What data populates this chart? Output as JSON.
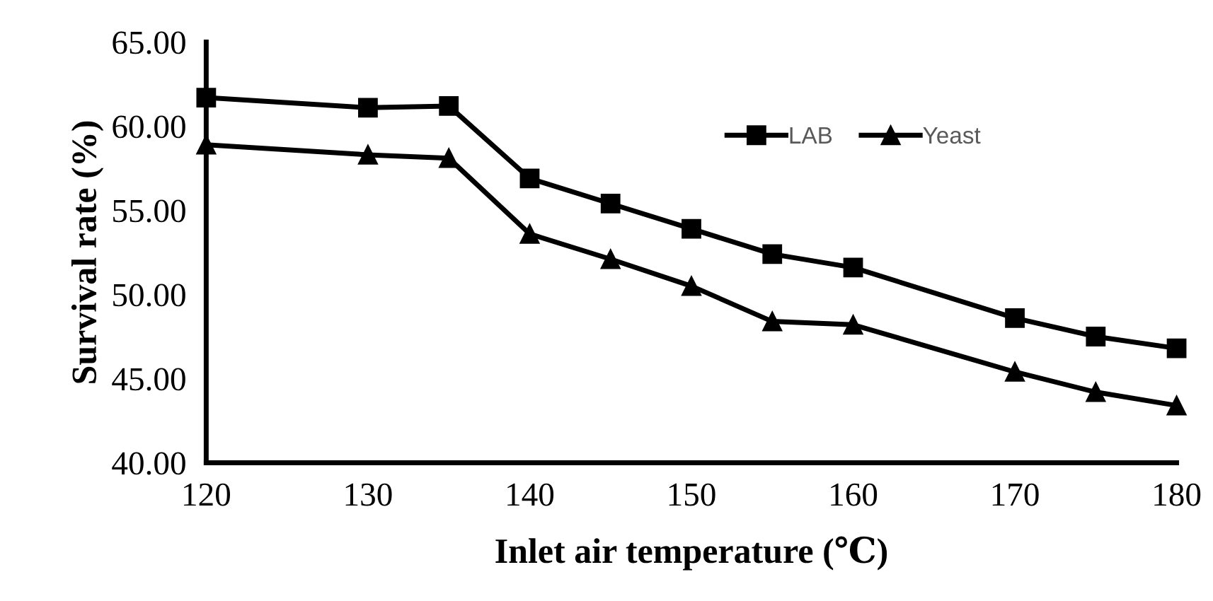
{
  "chart_data": {
    "type": "line",
    "xlabel": "Inlet air temperature (℃)",
    "ylabel": "Survival rate (%)",
    "x": [
      120,
      130,
      135,
      140,
      145,
      150,
      155,
      160,
      170,
      175,
      180
    ],
    "series": [
      {
        "name": "LAB",
        "color": "#000000",
        "marker": "square",
        "values": [
          61.7,
          61.1,
          61.2,
          56.9,
          55.4,
          53.9,
          52.4,
          51.6,
          48.6,
          47.5,
          46.8
        ]
      },
      {
        "name": "Yeast",
        "color": "#000000",
        "marker": "triangle",
        "values": [
          58.9,
          58.3,
          58.1,
          53.6,
          52.1,
          50.5,
          48.4,
          48.2,
          45.4,
          44.2,
          43.4
        ]
      }
    ],
    "xlim": [
      120,
      180
    ],
    "xticks": [
      120,
      130,
      140,
      150,
      160,
      170,
      180
    ],
    "ylim": [
      40,
      65
    ],
    "yticks": [
      {
        "value": 40,
        "label": "40.00"
      },
      {
        "value": 45,
        "label": "45.00"
      },
      {
        "value": 50,
        "label": "50.00"
      },
      {
        "value": 55,
        "label": "55.00"
      },
      {
        "value": 60,
        "label": "60.00"
      },
      {
        "value": 65,
        "label": "65.00"
      }
    ],
    "grid": false,
    "legend": "top right",
    "line_style": "solid"
  }
}
